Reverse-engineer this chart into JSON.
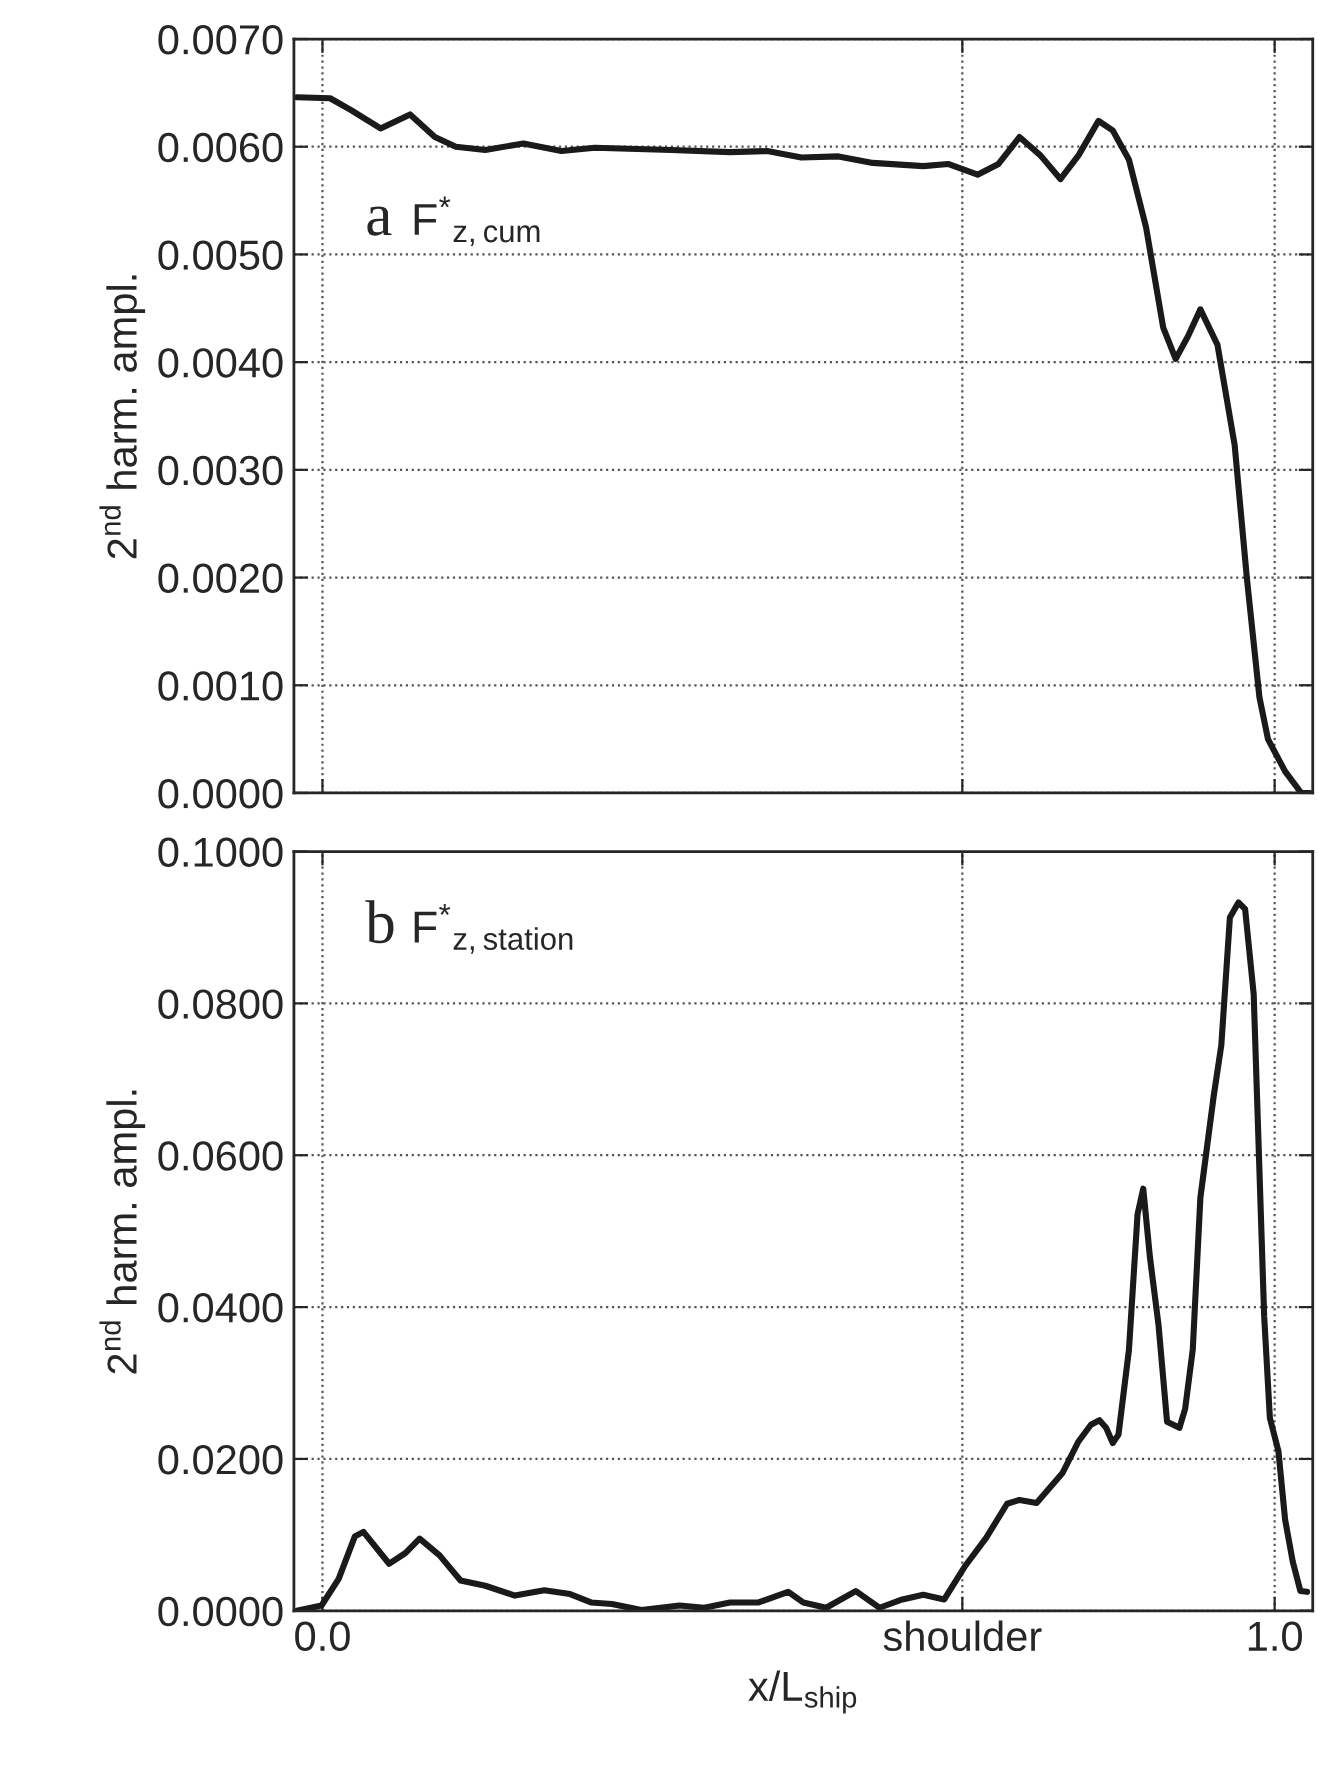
{
  "chart_data": [
    {
      "type": "line",
      "ylabel": "2$^{nd}$ harm. ampl.",
      "annotations": [
        "a F$^{*}$$_{z,cum}$"
      ],
      "xlim": [
        -0.03,
        1.04
      ],
      "xticks": [
        {
          "value": 0.0,
          "label": null
        },
        {
          "value": 0.672,
          "label": null
        },
        {
          "value": 1.0,
          "label": null
        }
      ],
      "ylim": [
        0,
        0.007
      ],
      "yticks": [
        {
          "value": 0,
          "label": "0.0000"
        },
        {
          "value": 0.001,
          "label": "0.0010"
        },
        {
          "value": 0.002,
          "label": "0.0020"
        },
        {
          "value": 0.003,
          "label": "0.0030"
        },
        {
          "value": 0.004,
          "label": "0.0040"
        },
        {
          "value": 0.005,
          "label": "0.0050"
        },
        {
          "value": 0.006,
          "label": "0.0060"
        },
        {
          "value": 0.007,
          "label": "0.0070"
        }
      ],
      "grid": true,
      "tick_labels": "y",
      "line_style": "solid",
      "marker": "none",
      "series": [
        {
          "color": "#1a1a1a",
          "x": [
            -0.027,
            0.008,
            0.03,
            0.061,
            0.092,
            0.118,
            0.14,
            0.171,
            0.211,
            0.251,
            0.286,
            0.366,
            0.428,
            0.467,
            0.503,
            0.542,
            0.578,
            0.631,
            0.657,
            0.688,
            0.71,
            0.732,
            0.754,
            0.775,
            0.794,
            0.815,
            0.83,
            0.847,
            0.865,
            0.883,
            0.896,
            0.909,
            0.922,
            0.94,
            0.958,
            0.971,
            0.984,
            0.993,
            1.011,
            1.028,
            1.037
          ],
          "values": [
            0.00646,
            0.00645,
            0.00634,
            0.00617,
            0.0063,
            0.00609,
            0.006,
            0.00597,
            0.00603,
            0.00596,
            0.00599,
            0.00597,
            0.00595,
            0.00596,
            0.0059,
            0.00591,
            0.00585,
            0.00582,
            0.00584,
            0.00574,
            0.00584,
            0.00609,
            0.00592,
            0.0057,
            0.00592,
            0.00624,
            0.00615,
            0.00588,
            0.00525,
            0.00432,
            0.00403,
            0.00424,
            0.00449,
            0.00416,
            0.00323,
            0.00198,
            0.00089,
            0.0005,
            0.0002,
            0.0,
            0.0
          ]
        }
      ]
    },
    {
      "type": "line",
      "ylabel": "2$^{nd}$ harm. ampl.",
      "xlabel": "x/L$_{ship}$",
      "annotations": [
        "b F$^{*}$$_{z,station}$"
      ],
      "xlim": [
        -0.03,
        1.04
      ],
      "xticks": [
        {
          "value": 0.0,
          "label": "0.0"
        },
        {
          "value": 0.672,
          "label": "shoulder"
        },
        {
          "value": 1.0,
          "label": "1.0"
        }
      ],
      "ylim": [
        0,
        0.1
      ],
      "yticks": [
        {
          "value": 0,
          "label": "0.0000"
        },
        {
          "value": 0.02,
          "label": "0.0200"
        },
        {
          "value": 0.04,
          "label": "0.0400"
        },
        {
          "value": 0.06,
          "label": "0.0600"
        },
        {
          "value": 0.08,
          "label": "0.0800"
        },
        {
          "value": 0.1,
          "label": "0.1000"
        }
      ],
      "grid": true,
      "line_style": "solid",
      "marker": "none",
      "series": [
        {
          "color": "#1a1a1a",
          "x": [
            -0.027,
            -0.001,
            0.017,
            0.034,
            0.043,
            0.07,
            0.087,
            0.102,
            0.123,
            0.145,
            0.171,
            0.202,
            0.233,
            0.26,
            0.282,
            0.304,
            0.335,
            0.375,
            0.401,
            0.428,
            0.458,
            0.489,
            0.505,
            0.529,
            0.56,
            0.585,
            0.609,
            0.631,
            0.653,
            0.675,
            0.697,
            0.719,
            0.732,
            0.75,
            0.777,
            0.794,
            0.807,
            0.816,
            0.823,
            0.83,
            0.836,
            0.847,
            0.856,
            0.862,
            0.869,
            0.878,
            0.887,
            0.9,
            0.906,
            0.914,
            0.922,
            0.936,
            0.944,
            0.953,
            0.962,
            0.969,
            0.978,
            0.989,
            0.995,
            1.004,
            1.011,
            1.019,
            1.027,
            1.034
          ],
          "values": [
            0.0,
            0.0007,
            0.0042,
            0.0098,
            0.0104,
            0.0062,
            0.0076,
            0.0095,
            0.0073,
            0.004,
            0.0033,
            0.002,
            0.0027,
            0.0022,
            0.0011,
            0.0009,
            0.0001,
            0.0007,
            0.0004,
            0.0011,
            0.0011,
            0.0025,
            0.0011,
            0.0004,
            0.0026,
            0.0004,
            0.0015,
            0.0021,
            0.0015,
            0.0059,
            0.0096,
            0.0141,
            0.0146,
            0.0142,
            0.0181,
            0.0223,
            0.0245,
            0.0251,
            0.0241,
            0.0221,
            0.0232,
            0.0344,
            0.0522,
            0.0556,
            0.0466,
            0.0377,
            0.0249,
            0.0241,
            0.0266,
            0.0344,
            0.0544,
            0.0678,
            0.0745,
            0.0913,
            0.0933,
            0.0924,
            0.0812,
            0.0388,
            0.0254,
            0.021,
            0.012,
            0.0065,
            0.0026,
            0.0025
          ]
        }
      ]
    }
  ]
}
